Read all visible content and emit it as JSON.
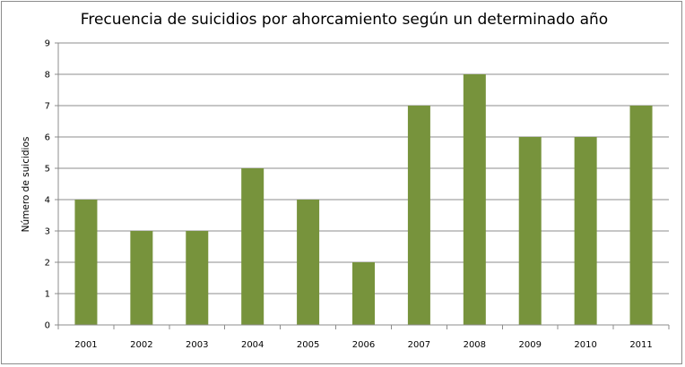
{
  "chart_data": {
    "type": "bar",
    "title": "Frecuencia de suicidios por ahorcamiento según un determinado año",
    "xlabel": "",
    "ylabel": "Número de suicidios",
    "categories": [
      "2001",
      "2002",
      "2003",
      "2004",
      "2005",
      "2006",
      "2007",
      "2008",
      "2009",
      "2010",
      "2011"
    ],
    "values": [
      4,
      3,
      3,
      5,
      4,
      2,
      7,
      8,
      6,
      6,
      7
    ],
    "ylim": [
      0,
      9
    ],
    "yticks": [
      "0",
      "1",
      "2",
      "3",
      "4",
      "5",
      "6",
      "7",
      "8",
      "9"
    ],
    "grid": true,
    "legend": "none",
    "colors": {
      "bar": "#77933c",
      "grid": "#8c8c8c",
      "axis": "#8c8c8c"
    }
  }
}
